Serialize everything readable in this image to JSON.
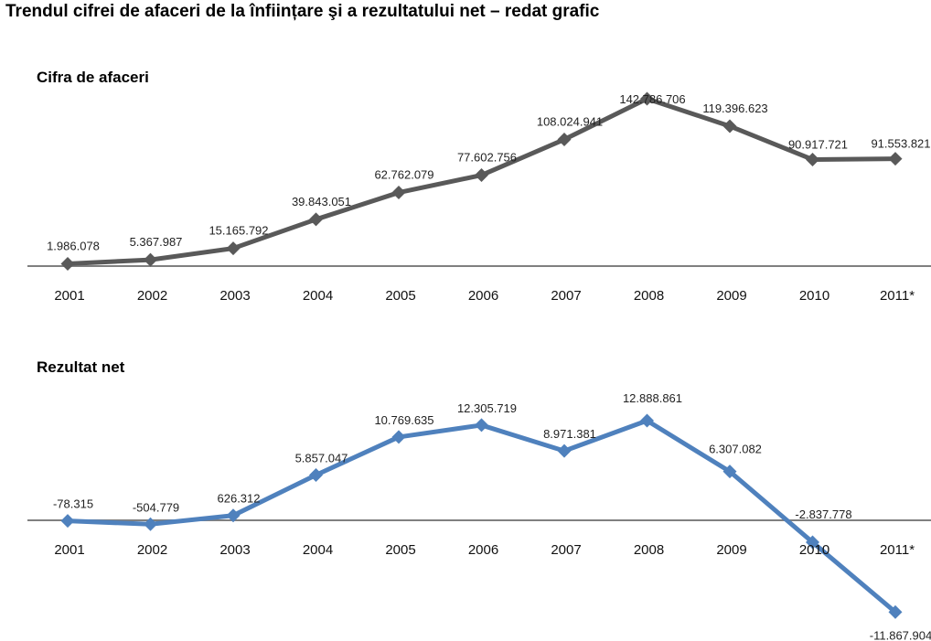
{
  "title": "Trendul cifrei de afaceri de la înființare şi a rezultatului net – redat grafic",
  "chart_data": [
    {
      "type": "line",
      "title": "Cifra de afaceri",
      "categories": [
        "2001",
        "2002",
        "2003",
        "2004",
        "2005",
        "2006",
        "2007",
        "2008",
        "2009",
        "2010",
        "2011*"
      ],
      "values": [
        1986078,
        5367987,
        15165792,
        39843051,
        62762079,
        77602756,
        108024941,
        142786706,
        119396623,
        90917721,
        91553821
      ],
      "labels": [
        "1.986.078",
        "5.367.987",
        "15.165.792",
        "39.843.051",
        "62.762.079",
        "77.602.756",
        "108.024.941",
        "142.786.706",
        "119.396.623",
        "90.917.721",
        "91.553.821"
      ],
      "color": "#595959",
      "grid": false,
      "legend": "none"
    },
    {
      "type": "line",
      "title": "Rezultat net",
      "categories": [
        "2001",
        "2002",
        "2003",
        "2004",
        "2005",
        "2006",
        "2007",
        "2008",
        "2009",
        "2010",
        "2011*"
      ],
      "values": [
        -78315,
        -504779,
        626312,
        5857047,
        10769635,
        12305719,
        8971381,
        12888861,
        6307082,
        -2837778,
        -11867904
      ],
      "labels": [
        "-78.315",
        "-504.779",
        "626.312",
        "5.857.047",
        "10.769.635",
        "12.305.719",
        "8.971.381",
        "12.888.861",
        "6.307.082",
        "-2.837.778",
        "-11.867.904"
      ],
      "color": "#4f81bd",
      "grid": false,
      "legend": "none"
    }
  ]
}
